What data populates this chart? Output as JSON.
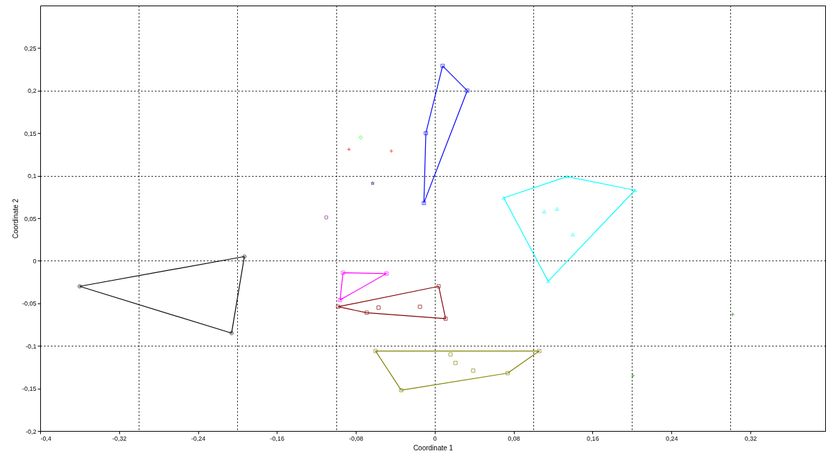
{
  "chart_data": {
    "type": "scatter",
    "xlabel": "Coordinate 1",
    "ylabel": "Coordinate 2",
    "xlim": [
      -0.4,
      0.396
    ],
    "ylim": [
      -0.2,
      0.3
    ],
    "xticks": [
      {
        "value": -0.4,
        "label": "-0,4"
      },
      {
        "value": -0.32,
        "label": "-0,32"
      },
      {
        "value": -0.24,
        "label": "-0,24"
      },
      {
        "value": -0.16,
        "label": "-0,16"
      },
      {
        "value": -0.08,
        "label": "-0,08"
      },
      0,
      {
        "value": 0.08,
        "label": "0,08"
      },
      {
        "value": 0.16,
        "label": "0,16"
      },
      {
        "value": 0.24,
        "label": "0,24"
      },
      {
        "value": 0.32,
        "label": "0,32"
      },
      {
        "value": -0.3,
        "label": null
      },
      {
        "value": -0.2,
        "label": null
      },
      {
        "value": -0.1,
        "label": null
      },
      {
        "value": 0,
        "label": null
      },
      {
        "value": 0.1,
        "label": null
      },
      {
        "value": 0.2,
        "label": null
      },
      {
        "value": 0.3,
        "label": null
      }
    ],
    "yticks": [
      {
        "value": -0.2,
        "label": "-0,2"
      },
      {
        "value": -0.15,
        "label": "-0,15"
      },
      {
        "value": -0.1,
        "label": "-0,1"
      },
      {
        "value": -0.05,
        "label": "-0,05"
      },
      0,
      {
        "value": 0.05,
        "label": "0,05"
      },
      {
        "value": 0.1,
        "label": "0,1"
      },
      {
        "value": 0.15,
        "label": "0,15"
      },
      {
        "value": 0.2,
        "label": "0,2"
      },
      {
        "value": 0.25,
        "label": "0,25"
      },
      {
        "value": -0.2,
        "label": null
      },
      {
        "value": -0.1,
        "label": null
      },
      {
        "value": 0,
        "label": null
      },
      {
        "value": 0.1,
        "label": null
      },
      {
        "value": 0.2,
        "label": null
      }
    ],
    "grid": true,
    "series": [
      {
        "marker": "circle",
        "color": "#000000",
        "x": [
          -0.193,
          -0.36,
          -0.206
        ],
        "values": [
          0.005,
          -0.03,
          -0.085
        ]
      },
      {
        "type": "line",
        "color": "#000000",
        "x": [
          -0.36,
          -0.193
        ],
        "values": [
          -0.03,
          0.005
        ]
      },
      {
        "type": "line",
        "color": "#000000",
        "x": [
          -0.36,
          -0.206,
          -0.193
        ],
        "values": [
          -0.03,
          -0.085,
          0.005
        ]
      },
      {
        "marker": "square",
        "color": "#0000ff",
        "x": [
          0.008,
          0.033,
          -0.009,
          -0.011
        ],
        "values": [
          0.229,
          0.2,
          0.15,
          0.068
        ]
      },
      {
        "type": "line",
        "color": "#0000ff",
        "x": [
          -0.011,
          -0.009,
          0.008,
          0.033
        ],
        "values": [
          0.068,
          0.15,
          0.229,
          0.2
        ]
      },
      {
        "type": "line",
        "color": "#0000ff",
        "x": [
          -0.011,
          0.033
        ],
        "values": [
          0.068,
          0.2
        ]
      },
      {
        "marker": "triangle",
        "color": "#00ffff",
        "x": [
          0.07,
          0.134,
          0.203,
          0.115,
          0.111,
          0.124,
          0.14
        ],
        "values": [
          0.074,
          0.099,
          0.083,
          -0.024,
          0.058,
          0.061,
          0.031
        ]
      },
      {
        "type": "line",
        "color": "#00ffff",
        "x": [
          0.07,
          0.134,
          0.203
        ],
        "values": [
          0.074,
          0.099,
          0.083
        ]
      },
      {
        "type": "line",
        "color": "#00ffff",
        "x": [
          0.07,
          0.115,
          0.203
        ],
        "values": [
          0.074,
          -0.024,
          0.083
        ]
      },
      {
        "marker": "square",
        "color": "#ff00ff",
        "x": [
          -0.093,
          -0.049,
          -0.096
        ],
        "values": [
          -0.014,
          -0.015,
          -0.046
        ]
      },
      {
        "type": "line",
        "color": "#ff00ff",
        "x": [
          -0.096,
          -0.093,
          -0.049
        ],
        "values": [
          -0.046,
          -0.014,
          -0.015
        ]
      },
      {
        "type": "line",
        "color": "#ff00ff",
        "x": [
          -0.096,
          -0.049
        ],
        "values": [
          -0.046,
          -0.015
        ]
      },
      {
        "marker": "square",
        "color": "#800000",
        "x": [
          -0.098,
          0.004,
          0.011,
          -0.069,
          -0.057,
          -0.015
        ],
        "values": [
          -0.054,
          -0.03,
          -0.068,
          -0.061,
          -0.055,
          -0.054
        ]
      },
      {
        "type": "line",
        "color": "#800000",
        "x": [
          -0.098,
          0.004,
          0.011
        ],
        "values": [
          -0.054,
          -0.03,
          -0.068
        ]
      },
      {
        "type": "line",
        "color": "#800000",
        "x": [
          -0.098,
          -0.069,
          0.011
        ],
        "values": [
          -0.054,
          -0.061,
          -0.068
        ]
      },
      {
        "marker": "square",
        "color": "#808000",
        "x": [
          -0.06,
          0.106,
          0.074,
          -0.034,
          0.016,
          0.021,
          0.039
        ],
        "values": [
          -0.106,
          -0.106,
          -0.132,
          -0.152,
          -0.11,
          -0.12,
          -0.129
        ]
      },
      {
        "type": "line",
        "color": "#808000",
        "x": [
          -0.06,
          0.106
        ],
        "values": [
          -0.106,
          -0.106
        ]
      },
      {
        "type": "line",
        "color": "#808000",
        "x": [
          -0.06,
          -0.034,
          0.074,
          0.106
        ],
        "values": [
          -0.106,
          -0.152,
          -0.132,
          -0.106
        ]
      },
      {
        "marker": "cross",
        "color": "#ff0000",
        "x": [
          -0.087,
          -0.044
        ],
        "values": [
          0.131,
          0.129
        ]
      },
      {
        "marker": "diamond",
        "color": "#00ff00",
        "x": [
          -0.075
        ],
        "values": [
          0.145
        ]
      },
      {
        "marker": "star",
        "color": "#000080",
        "x": [
          -0.063
        ],
        "values": [
          0.091
        ]
      },
      {
        "marker": "circle",
        "color": "#800080",
        "x": [
          -0.11
        ],
        "values": [
          0.051
        ]
      },
      {
        "marker": "cross",
        "color": "#008000",
        "x": [
          0.302,
          0.201
        ],
        "values": [
          -0.063,
          -0.135
        ]
      }
    ]
  }
}
